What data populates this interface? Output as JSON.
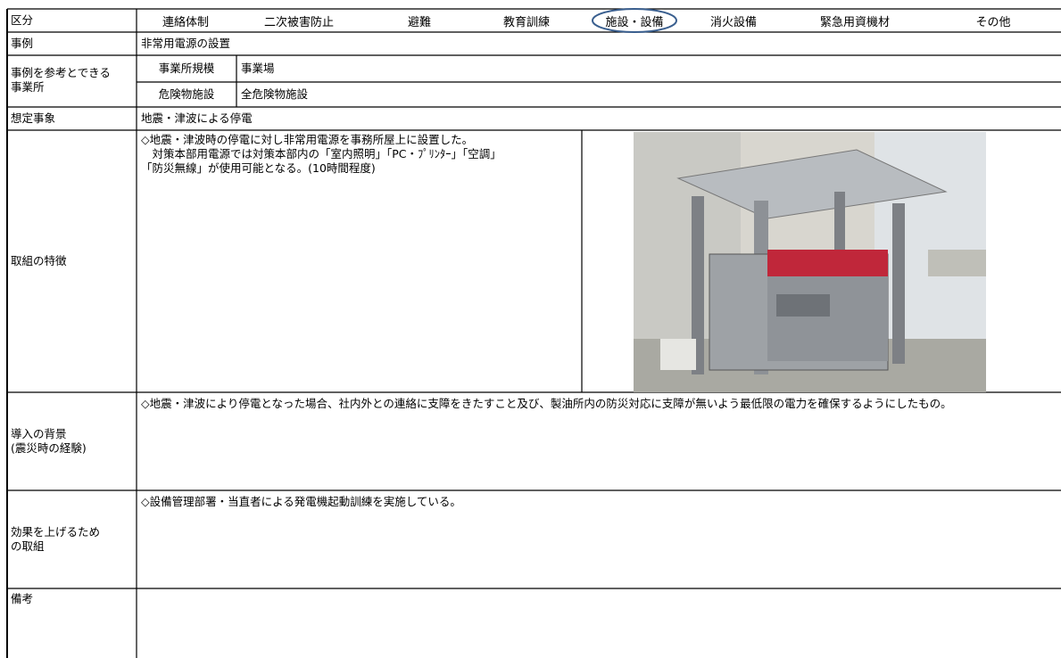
{
  "header": {
    "label": "区分",
    "categories": [
      "連絡体制",
      "二次被害防止",
      "避難",
      "教育訓練",
      "施設・設備",
      "消火設備",
      "緊急用資機材",
      "その他"
    ]
  },
  "case": {
    "label": "事例",
    "value": "非常用電源の設置"
  },
  "reference": {
    "label": "事例を参考とできる\n事業所",
    "rows": [
      {
        "label": "事業所規模",
        "value": "事業場"
      },
      {
        "label": "危険物施設",
        "value": "全危険物施設"
      }
    ]
  },
  "scenario": {
    "label": "想定事象",
    "value": "地震・津波による停電"
  },
  "features": {
    "label": "取組の特徴",
    "text": "◇地震・津波時の停電に対し非常用電源を事務所屋上に設置した。\n　対策本部用電源では対策本部内の「室内照明」「PC・ﾌﾟﾘﾝﾀｰ」「空調」\n「防災無線」が使用可能となる。(10時間程度)"
  },
  "background": {
    "label": "導入の背景\n(震災時の経験)",
    "text": "◇地震・津波により停電となった場合、社内外との連絡に支障をきたすこと及び、製油所内の防災対応に支障が無いよう最低限の電力を確保するようにしたもの。"
  },
  "effect": {
    "label": "効果を上げるため\nの取組",
    "text": "◇設備管理部署・当直者による発電機起動訓練を実施している。"
  },
  "remarks": {
    "label": "備考"
  }
}
